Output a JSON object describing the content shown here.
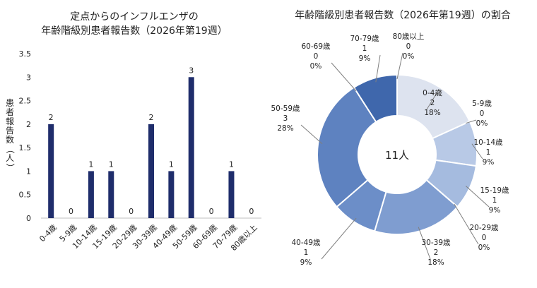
{
  "bar_title_line1": "定点からのインフルエンザの",
  "bar_title_line2": "年齢階級別患者報告数（2026年第19週）",
  "bar_ylabel": "患者報告数（人）",
  "donut_title": "年齢階級別患者報告数（2026年第19週）の割合",
  "donut_center": "11人",
  "colors": {
    "bar": "#1f2d6b",
    "slices": [
      "#dde3ef",
      "#c9d5eb",
      "#b8c9e6",
      "#a5bbdf",
      "#8fa9d6",
      "#7f9dd0",
      "#6c8ec8",
      "#5e82c0",
      "#4f76b8",
      "#3f67ac"
    ],
    "leader": "#7f7f7f",
    "grid": "#d9d9d9"
  },
  "chart_data": [
    {
      "type": "bar",
      "title": "定点からのインフルエンザの 年齢階級別患者報告数（2026年第19週）",
      "ylabel": "患者報告数（人）",
      "categories": [
        "0-4歳",
        "5-9歳",
        "10-14歳",
        "15-19歳",
        "20-29歳",
        "30-39歳",
        "40-49歳",
        "50-59歳",
        "60-69歳",
        "70-79歳",
        "80歳以上"
      ],
      "values": [
        2,
        0,
        1,
        1,
        0,
        2,
        1,
        3,
        0,
        1,
        0
      ],
      "yticks": [
        "0",
        "0.5",
        "1",
        "1.5",
        "2",
        "2.5",
        "3",
        "3.5"
      ],
      "ylim": [
        0,
        3.5
      ]
    },
    {
      "type": "pie",
      "title": "年齢階級別患者報告数（2026年第19週）の割合",
      "center_label": "11人",
      "categories": [
        "0-4歳",
        "5-9歳",
        "10-14歳",
        "15-19歳",
        "20-29歳",
        "30-39歳",
        "40-49歳",
        "50-59歳",
        "60-69歳",
        "70-79歳",
        "80歳以上"
      ],
      "values": [
        2,
        0,
        1,
        1,
        0,
        2,
        1,
        3,
        0,
        1,
        0
      ],
      "percent_labels": [
        "18%",
        "0%",
        "9%",
        "9%",
        "0%",
        "18%",
        "9%",
        "28%",
        "0%",
        "9%",
        "0%"
      ]
    }
  ]
}
